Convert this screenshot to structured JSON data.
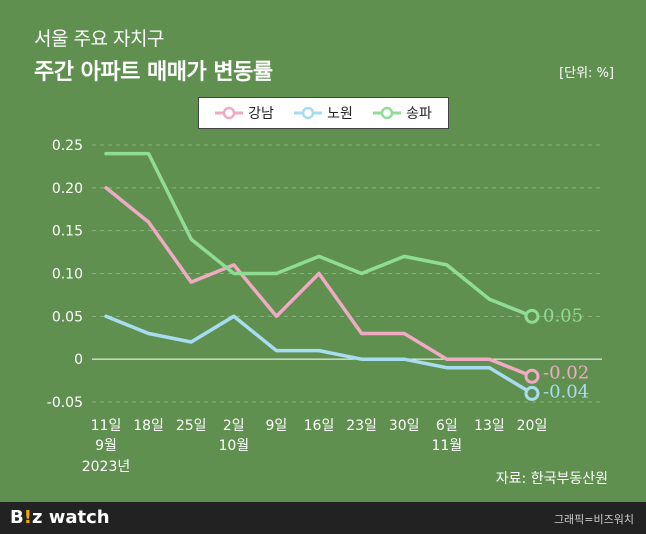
{
  "header": {
    "subtitle": "서울 주요 자치구",
    "title": "주간 아파트 매매가 변동률",
    "unit": "[단위: %]"
  },
  "source": "자료: 한국부동산원",
  "footer": {
    "logo_b": "B",
    "logo_i": "!",
    "logo_z": "z",
    "logo_watch": "watch",
    "credit": "그래픽=비즈워치"
  },
  "chart_data": {
    "type": "line",
    "categories": [
      "11일",
      "18일",
      "25일",
      "2일",
      "9일",
      "16일",
      "23일",
      "30일",
      "6일",
      "13일",
      "20일"
    ],
    "month_labels": [
      {
        "index": 0,
        "label": "9월"
      },
      {
        "index": 3,
        "label": "10월"
      },
      {
        "index": 8,
        "label": "11월"
      }
    ],
    "year_label": "2023년",
    "ylim": [
      -0.05,
      0.25
    ],
    "yticks": [
      0.25,
      0.2,
      0.15,
      0.1,
      0.05,
      0,
      -0.05
    ],
    "ytick_labels": [
      "0.25",
      "0.20",
      "0.15",
      "0.10",
      "0.05",
      "0",
      "-0.05"
    ],
    "grid": true,
    "legend_position": "top-center",
    "series": [
      {
        "name": "강남",
        "color": "#f0aac4",
        "values": [
          0.2,
          0.16,
          0.09,
          0.11,
          0.05,
          0.1,
          0.03,
          0.03,
          0,
          0,
          -0.02
        ],
        "end_label": "-0.02"
      },
      {
        "name": "노원",
        "color": "#a8dcf0",
        "values": [
          0.05,
          0.03,
          0.02,
          0.05,
          0.01,
          0.01,
          0,
          0,
          -0.01,
          -0.01,
          -0.04
        ],
        "end_label": "-0.04"
      },
      {
        "name": "송파",
        "color": "#8fdc94",
        "values": [
          0.24,
          0.24,
          0.14,
          0.1,
          0.1,
          0.12,
          0.1,
          0.12,
          0.11,
          0.07,
          0.05
        ],
        "end_label": "0.05"
      }
    ]
  }
}
